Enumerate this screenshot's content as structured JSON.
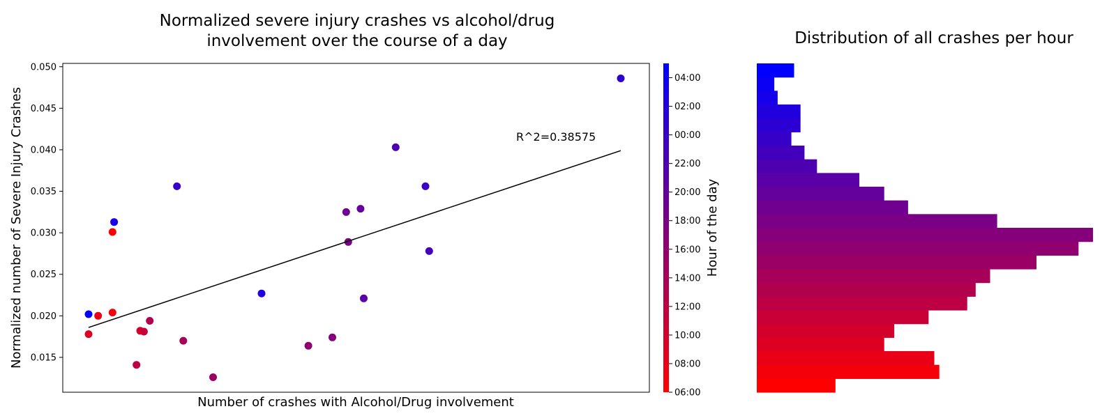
{
  "chart_data": [
    {
      "type": "scatter",
      "title_lines": [
        "Normalized severe injury crashes vs alcohol/drug",
        "involvement over the course of a day"
      ],
      "xlabel": "Number of crashes with Alcohol/Drug involvement",
      "ylabel": "Normalized number of Severe Injury Crashes",
      "xticks_visible": false,
      "ylim": [
        0.0108,
        0.0504
      ],
      "yticks": [
        "0.015",
        "0.020",
        "0.025",
        "0.030",
        "0.035",
        "0.040",
        "0.045",
        "0.050"
      ],
      "grid": false,
      "x_units_note": "relative position along unlabeled x axis (0 = left end of fit line, 1 = right end)",
      "points": [
        {
          "hour": 0,
          "x": 0.166,
          "y": 0.0356
        },
        {
          "hour": 1,
          "x": 1.0,
          "y": 0.0486
        },
        {
          "hour": 2,
          "x": 0.325,
          "y": 0.0227
        },
        {
          "hour": 3,
          "x": 0.048,
          "y": 0.0313
        },
        {
          "hour": 5,
          "x": 0.0,
          "y": 0.0202
        },
        {
          "hour": 6,
          "x": 0.045,
          "y": 0.0301
        },
        {
          "hour": 7,
          "x": 0.045,
          "y": 0.0204
        },
        {
          "hour": 8,
          "x": 0.018,
          "y": 0.02
        },
        {
          "hour": 9,
          "x": 0.0,
          "y": 0.0178
        },
        {
          "hour": 10,
          "x": 0.097,
          "y": 0.0182
        },
        {
          "hour": 11,
          "x": 0.104,
          "y": 0.0181
        },
        {
          "hour": 12,
          "x": 0.09,
          "y": 0.0141
        },
        {
          "hour": 13,
          "x": 0.115,
          "y": 0.0194
        },
        {
          "hour": 14,
          "x": 0.178,
          "y": 0.017
        },
        {
          "hour": 15,
          "x": 0.234,
          "y": 0.0126
        },
        {
          "hour": 16,
          "x": 0.413,
          "y": 0.0164
        },
        {
          "hour": 17,
          "x": 0.458,
          "y": 0.0174
        },
        {
          "hour": 18,
          "x": 0.488,
          "y": 0.0289
        },
        {
          "hour": 19,
          "x": 0.484,
          "y": 0.0325
        },
        {
          "hour": 20,
          "x": 0.511,
          "y": 0.0329
        },
        {
          "hour": 21,
          "x": 0.517,
          "y": 0.0221
        },
        {
          "hour": 22,
          "x": 0.577,
          "y": 0.0403
        },
        {
          "hour": 23,
          "x": 0.64,
          "y": 0.0278
        },
        {
          "hour": 23.5,
          "x": 0.633,
          "y": 0.0356
        }
      ],
      "fit_line": {
        "x": [
          0,
          1
        ],
        "y": [
          0.0186,
          0.0399
        ]
      },
      "annotation": "R^2=0.38575"
    },
    {
      "type": "colorbar",
      "label": "Hour of the day",
      "ticks": [
        "06:00",
        "08:00",
        "10:00",
        "12:00",
        "14:00",
        "16:00",
        "18:00",
        "20:00",
        "22:00",
        "00:00",
        "02:00",
        "04:00"
      ],
      "color_low": "#ff0000",
      "color_high": "#0000ff"
    },
    {
      "type": "bar",
      "orientation": "horizontal",
      "title": "Distribution of all crashes per hour",
      "axes_visible": false,
      "hours_bottom_to_top": [
        "06:00",
        "07:00",
        "08:00",
        "09:00",
        "10:00",
        "11:00",
        "12:00",
        "13:00",
        "14:00",
        "15:00",
        "16:00",
        "17:00",
        "18:00",
        "19:00",
        "20:00",
        "21:00",
        "22:00",
        "23:00",
        "00:00",
        "01:00",
        "02:00",
        "03:00",
        "04:00",
        "05:00"
      ],
      "values_bottom_to_top": [
        0.234,
        0.543,
        0.528,
        0.379,
        0.409,
        0.511,
        0.626,
        0.651,
        0.694,
        0.832,
        0.957,
        1.0,
        0.715,
        0.45,
        0.379,
        0.305,
        0.179,
        0.142,
        0.103,
        0.13,
        0.13,
        0.062,
        0.052,
        0.111
      ],
      "values_note": "relative to longest bar",
      "color_low": "#ff0000",
      "color_high": "#0000ff"
    }
  ]
}
